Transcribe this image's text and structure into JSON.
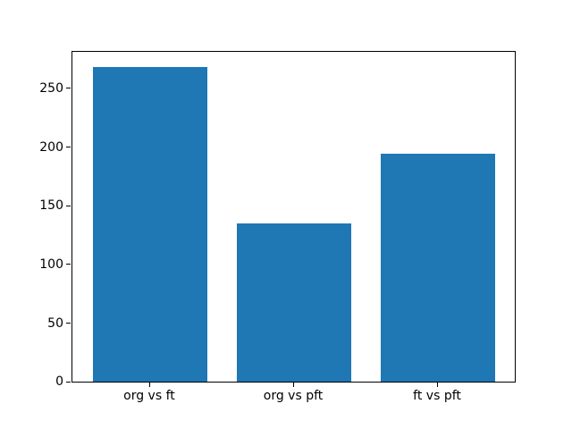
{
  "figure": {
    "background": "#ffffff",
    "text_color": "#000000"
  },
  "chart_data": {
    "type": "bar",
    "title": "",
    "xlabel": "",
    "ylabel": "",
    "categories": [
      "org vs ft",
      "org vs pft",
      "ft vs pft"
    ],
    "values": [
      268,
      135,
      194
    ],
    "bar_color": "#1f77b4",
    "ylim": [
      0,
      281.4
    ],
    "yticks": [
      0,
      50,
      100,
      150,
      200,
      250
    ],
    "grid": false,
    "legend": null
  }
}
